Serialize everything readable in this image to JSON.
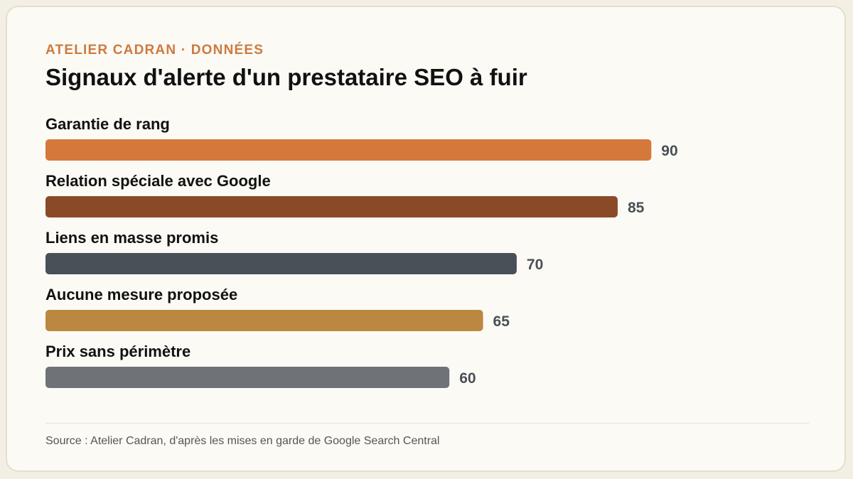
{
  "header": {
    "eyebrow": "ATELIER CADRAN · DONNÉES",
    "title": "Signaux d'alerte d'un prestataire SEO à fuir"
  },
  "chart_data": {
    "type": "bar",
    "orientation": "horizontal",
    "title": "Signaux d'alerte d'un prestataire SEO à fuir",
    "categories": [
      "Garantie de rang",
      "Relation spéciale avec Google",
      "Liens en masse promis",
      "Aucune mesure proposée",
      "Prix sans périmètre"
    ],
    "values": [
      90,
      85,
      70,
      65,
      60
    ],
    "colors": [
      "#d4783c",
      "#8b4a27",
      "#4a5058",
      "#bb8741",
      "#6f7277"
    ],
    "xlim": [
      0,
      100
    ],
    "grid": false,
    "legend": "none",
    "data_labels": true
  },
  "footer": {
    "source": "Source : Atelier Cadran, d'après les mises en garde de Google Search Central"
  }
}
